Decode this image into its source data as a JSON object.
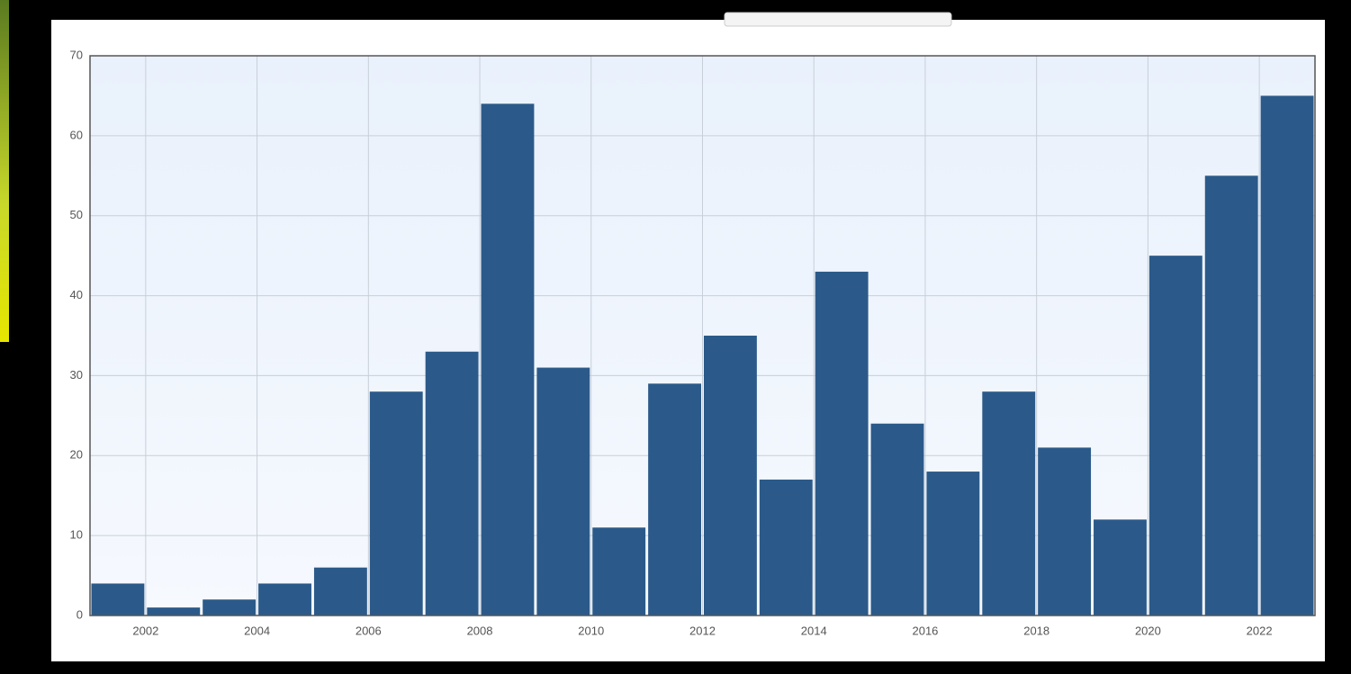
{
  "chart_data": {
    "type": "histogram",
    "bins": [
      2001,
      2002,
      2003,
      2004,
      2005,
      2006,
      2007,
      2008,
      2009,
      2010,
      2011,
      2012,
      2013,
      2014,
      2015,
      2016,
      2017,
      2018,
      2019,
      2020,
      2021,
      2022,
      2023
    ],
    "values": [
      4,
      1,
      2,
      4,
      6,
      28,
      33,
      64,
      31,
      11,
      29,
      35,
      17,
      43,
      24,
      18,
      28,
      21,
      12,
      45,
      55,
      65
    ],
    "color": "#2b5a8a",
    "xlim": [
      2001,
      2023
    ],
    "xticks": [
      2002,
      2004,
      2006,
      2008,
      2010,
      2012,
      2014,
      2016,
      2018,
      2020,
      2022
    ],
    "ylim": [
      0,
      70
    ],
    "yticks": [
      0,
      10,
      20,
      30,
      40,
      50,
      60,
      70
    ],
    "grid": true
  }
}
